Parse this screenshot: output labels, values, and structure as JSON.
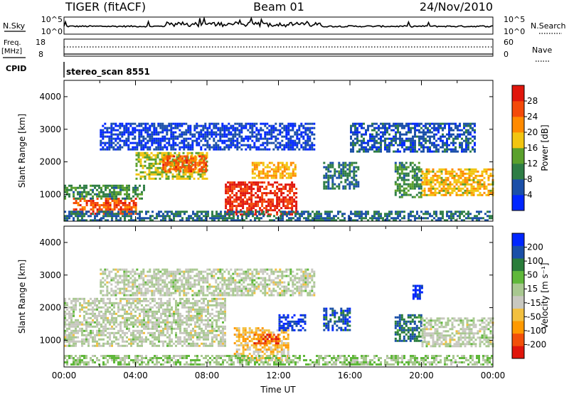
{
  "header": {
    "radar": "TIGER (fitACF)",
    "beam": "Beam 01",
    "date": "24/Nov/2010"
  },
  "top_panels": {
    "nsky_label": "N.Sky",
    "nsearch_label": "N.Search",
    "noise_ticks_left": [
      "10^5",
      "10^0"
    ],
    "noise_ticks_right": [
      "10^5",
      "10^0"
    ],
    "freq_label_1": "Freq.",
    "freq_label_2": "[MHz]",
    "freq_ticks": [
      "18",
      "8"
    ],
    "nave_label": "Nave",
    "nave_ticks": [
      "60",
      "0"
    ],
    "cpid_label": "CPID",
    "cpid_text": "stereo_scan 8551"
  },
  "colors": {
    "power": [
      "#0026ff",
      "#1a4fa8",
      "#2e7d45",
      "#5aa02c",
      "#f2c511",
      "#ff8a00",
      "#f44a0a",
      "#e0160c"
    ],
    "velocity": [
      "#e0160c",
      "#f2500a",
      "#ff9900",
      "#f2c040",
      "#c8c8c0",
      "#a8c890",
      "#5fb83a",
      "#2a7d3a",
      "#1a4fa8",
      "#0026ff"
    ]
  },
  "chart_data": [
    {
      "type": "heatmap",
      "panel": "power",
      "ylabel": "Slant Range [km]",
      "ylim": [
        180,
        4500
      ],
      "yticks": [
        "1000",
        "2000",
        "3000",
        "4000"
      ],
      "xlim": [
        "00:00",
        "24:00"
      ],
      "colorbar_label": "Power [dB]",
      "colorbar_ticks": [
        "4",
        "8",
        "12",
        "16",
        "20",
        "24",
        "28"
      ],
      "scale_range": [
        0,
        32
      ],
      "blobs": [
        {
          "t": [
            0.5,
            4.0
          ],
          "r": [
            400,
            900
          ],
          "v": 26
        },
        {
          "t": [
            0.0,
            4.5
          ],
          "r": [
            900,
            1300
          ],
          "v": 11
        },
        {
          "t": [
            4.0,
            8.0
          ],
          "r": [
            1500,
            2300
          ],
          "v": 16
        },
        {
          "t": [
            5.5,
            8.0
          ],
          "r": [
            1700,
            2200
          ],
          "v": 25
        },
        {
          "t": [
            9.0,
            13.0
          ],
          "r": [
            400,
            1400
          ],
          "v": 29
        },
        {
          "t": [
            10.5,
            13.0
          ],
          "r": [
            1500,
            2000
          ],
          "v": 20
        },
        {
          "t": [
            14.5,
            16.5
          ],
          "r": [
            1200,
            2000
          ],
          "v": 9
        },
        {
          "t": [
            18.5,
            20.0
          ],
          "r": [
            900,
            2000
          ],
          "v": 11
        },
        {
          "t": [
            20.0,
            24.0
          ],
          "r": [
            1000,
            1800
          ],
          "v": 19
        },
        {
          "t": [
            0.0,
            24.0
          ],
          "r": [
            200,
            500
          ],
          "v": 8
        },
        {
          "t": [
            2.0,
            14.0
          ],
          "r": [
            2400,
            3200
          ],
          "v": 4
        },
        {
          "t": [
            16.0,
            23.0
          ],
          "r": [
            2300,
            3200
          ],
          "v": 6
        }
      ]
    },
    {
      "type": "heatmap",
      "panel": "velocity",
      "ylabel": "Slant Range [km]",
      "ylim": [
        180,
        4500
      ],
      "yticks": [
        "1000",
        "2000",
        "3000",
        "4000"
      ],
      "xlim": [
        "00:00",
        "24:00"
      ],
      "xlabel": "Time UT",
      "xticks": [
        "00:00",
        "04:00",
        "08:00",
        "12:00",
        "16:00",
        "20:00",
        "00:00"
      ],
      "colorbar_label": "Velocity [m s⁻¹]",
      "colorbar_ticks": [
        "-200",
        "-100",
        "-50",
        "-15",
        "15",
        "50",
        "100",
        "200"
      ],
      "scale_range": [
        -250,
        250
      ],
      "blobs": [
        {
          "t": [
            0.0,
            9.0
          ],
          "r": [
            800,
            2300
          ],
          "v": 0
        },
        {
          "t": [
            9.5,
            12.5
          ],
          "r": [
            400,
            1400
          ],
          "v": -80
        },
        {
          "t": [
            10.5,
            12.0
          ],
          "r": [
            900,
            1200
          ],
          "v": -180
        },
        {
          "t": [
            12.0,
            13.5
          ],
          "r": [
            1300,
            1800
          ],
          "v": 210
        },
        {
          "t": [
            14.5,
            16.0
          ],
          "r": [
            1300,
            2000
          ],
          "v": 180
        },
        {
          "t": [
            18.5,
            20.0
          ],
          "r": [
            1000,
            1800
          ],
          "v": 150
        },
        {
          "t": [
            19.5,
            20.0
          ],
          "r": [
            2300,
            2700
          ],
          "v": 230
        },
        {
          "t": [
            20.0,
            24.0
          ],
          "r": [
            800,
            1700
          ],
          "v": 0
        },
        {
          "t": [
            0.0,
            24.0
          ],
          "r": [
            250,
            550
          ],
          "v": 40
        },
        {
          "t": [
            2.0,
            14.0
          ],
          "r": [
            2400,
            3200
          ],
          "v": 0
        }
      ]
    }
  ]
}
